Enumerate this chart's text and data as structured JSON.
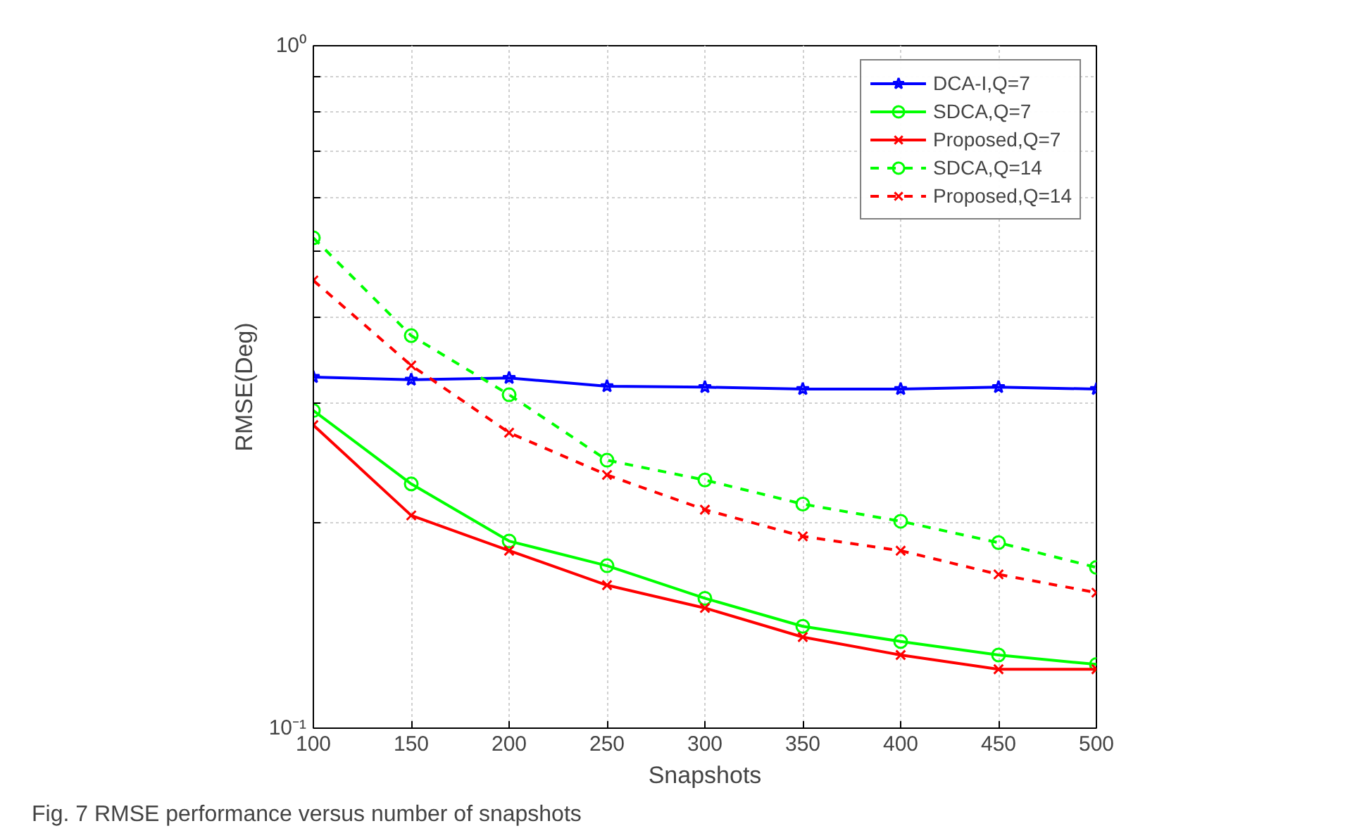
{
  "chart_data": {
    "type": "line",
    "xlabel": "Snapshots",
    "ylabel": "RMSE(Deg)",
    "annotations": [
      "Fig. 7  RMSE performance versus number of snapshots"
    ],
    "x": [
      100,
      150,
      200,
      250,
      300,
      350,
      400,
      450,
      500
    ],
    "xlim": [
      100,
      500
    ],
    "xticks": [
      100,
      150,
      200,
      250,
      300,
      350,
      400,
      450,
      500
    ],
    "ylim": [
      0.1,
      1
    ],
    "log": "y",
    "yticks": [
      {
        "value": 0.1,
        "label": "10⁻¹"
      },
      {
        "value": 0.2,
        "label": null
      },
      {
        "value": 0.3,
        "label": null
      },
      {
        "value": 0.4,
        "label": null
      },
      {
        "value": 0.5,
        "label": null
      },
      {
        "value": 0.6,
        "label": null
      },
      {
        "value": 0.7,
        "label": null
      },
      {
        "value": 0.8,
        "label": null
      },
      {
        "value": 0.9,
        "label": null
      },
      {
        "value": 1,
        "label": "10⁰"
      }
    ],
    "grid": true,
    "legend": "top right",
    "series": [
      {
        "name": "DCA-I,Q=7",
        "color": "#0000ff",
        "marker": "star",
        "line_style": "solid",
        "values": [
          0.327,
          0.324,
          0.326,
          0.317,
          0.316,
          0.314,
          0.314,
          0.316,
          0.314
        ]
      },
      {
        "name": "SDCA,Q=7",
        "color": "#00ff00",
        "marker": "circle",
        "line_style": "solid",
        "values": [
          0.292,
          0.228,
          0.188,
          0.173,
          0.155,
          0.141,
          0.134,
          0.128,
          0.124
        ]
      },
      {
        "name": "Proposed,Q=7",
        "color": "#ff0000",
        "marker": "cross",
        "line_style": "solid",
        "values": [
          0.278,
          0.205,
          0.182,
          0.162,
          0.15,
          0.136,
          0.128,
          0.122,
          0.122
        ]
      },
      {
        "name": "SDCA,Q=14",
        "color": "#00ff00",
        "marker": "circle",
        "line_style": "dashed",
        "values": [
          0.523,
          0.376,
          0.308,
          0.247,
          0.231,
          0.213,
          0.201,
          0.187,
          0.172
        ]
      },
      {
        "name": "Proposed,Q=14",
        "color": "#ff0000",
        "marker": "cross",
        "line_style": "dashed",
        "values": [
          0.453,
          0.34,
          0.271,
          0.235,
          0.209,
          0.191,
          0.182,
          0.168,
          0.158
        ]
      }
    ]
  }
}
